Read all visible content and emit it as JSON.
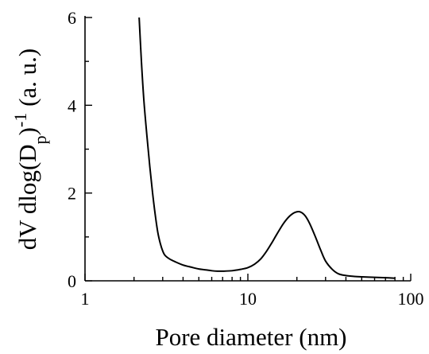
{
  "chart_data": {
    "type": "line",
    "title": "",
    "xlabel": "Pore diameter (nm)",
    "ylabel": {
      "main": "dV dlog(D",
      "sub": "p",
      "close": ")",
      "sup": "-1",
      "unit": " (a. u.)"
    },
    "x_scale": "log",
    "xlim": [
      1,
      100
    ],
    "ylim": [
      0,
      6
    ],
    "x_ticks": [
      1,
      10,
      100
    ],
    "x_tick_labels": [
      "1",
      "10",
      "100"
    ],
    "y_ticks": [
      0,
      2,
      4,
      6
    ],
    "y_tick_labels": [
      "0",
      "2",
      "4",
      "6"
    ],
    "grid": false,
    "legend": "none",
    "series": [
      {
        "color": "#000000",
        "x": [
          2.15,
          2.22,
          2.3,
          2.4,
          2.5,
          2.6,
          2.7,
          2.8,
          2.9,
          3.0,
          3.1,
          3.3,
          3.6,
          4.0,
          4.5,
          5.0,
          5.5,
          6.0,
          6.5,
          7.0,
          8.0,
          9.0,
          10.0,
          11.0,
          12.0,
          13.0,
          14.0,
          15.0,
          16.5,
          18.0,
          19.5,
          21.0,
          22.5,
          24.0,
          26.0,
          28.0,
          30.0,
          33.0,
          36.0,
          40.0,
          45.0,
          50.0,
          60.0,
          70.0,
          80.0
        ],
        "y": [
          6.0,
          5.0,
          4.1,
          3.3,
          2.6,
          2.0,
          1.5,
          1.1,
          0.85,
          0.68,
          0.58,
          0.5,
          0.43,
          0.36,
          0.31,
          0.27,
          0.25,
          0.23,
          0.22,
          0.22,
          0.23,
          0.26,
          0.3,
          0.38,
          0.5,
          0.67,
          0.86,
          1.05,
          1.3,
          1.47,
          1.56,
          1.57,
          1.48,
          1.3,
          1.0,
          0.7,
          0.45,
          0.26,
          0.16,
          0.12,
          0.1,
          0.09,
          0.08,
          0.07,
          0.06
        ]
      }
    ]
  }
}
